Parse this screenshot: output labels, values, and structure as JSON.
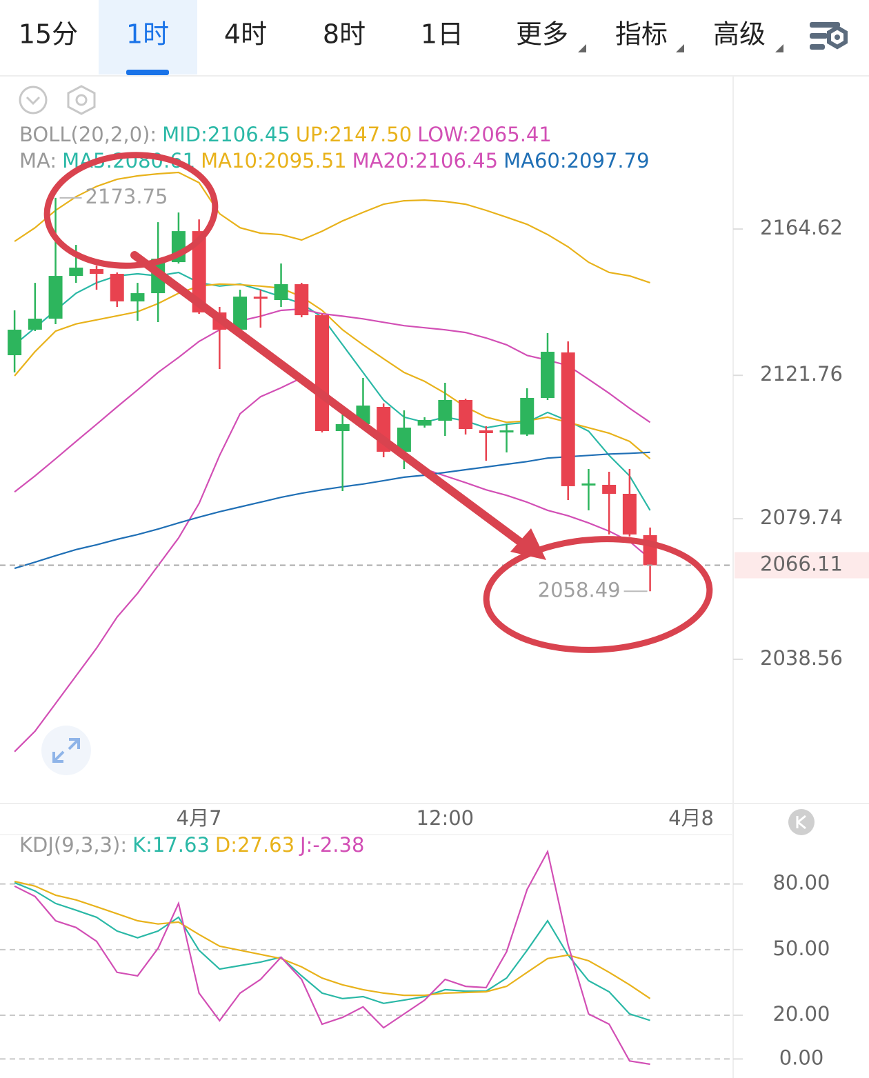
{
  "tabs": [
    "15分",
    "1时",
    "4时",
    "8时",
    "1日",
    "更多",
    "指标",
    "高级"
  ],
  "active_tab": 1,
  "chart_data": [
    {
      "type": "candlestick",
      "indicators": [
        {
          "title": "BOLL(20,2,0):",
          "items": [
            {
              "text": "MID:2106.45",
              "color": "#2ab8a6"
            },
            {
              "text": "UP:2147.50",
              "color": "#e8b21b"
            },
            {
              "text": "LOW:2065.41",
              "color": "#d24fb5"
            }
          ]
        },
        {
          "title": "MA:",
          "items": [
            {
              "text": "MA5:2080.61",
              "color": "#2ab8a6"
            },
            {
              "text": "MA10:2095.51",
              "color": "#e8b21b"
            },
            {
              "text": "MA20:2106.45",
              "color": "#d24fb5"
            },
            {
              "text": "MA60:2097.79",
              "color": "#1f6fb5"
            }
          ]
        }
      ],
      "x": [
        0,
        1,
        2,
        3,
        4,
        5,
        6,
        7,
        8,
        9,
        10,
        11,
        12,
        13,
        14,
        15,
        16,
        17,
        18,
        19,
        20,
        21,
        22,
        23,
        24,
        25,
        26,
        27,
        28,
        29,
        30,
        31
      ],
      "open": [
        2127.65,
        2135.13,
        2138.36,
        2150.88,
        2152.9,
        2151.49,
        2143.41,
        2145.83,
        2154.92,
        2164.01,
        2140.18,
        2135.13,
        2144.82,
        2143.81,
        2148.46,
        2139.37,
        2105.43,
        2107.45,
        2112.5,
        2099.37,
        2107.04,
        2108.46,
        2114.52,
        2105.63,
        2105.02,
        2104.42,
        2115.13,
        2128.46,
        2089.47,
        2089.67,
        2087.04,
        2074.92
      ],
      "high": [
        2140.78,
        2148.86,
        2173.75,
        2159.97,
        2153.91,
        2151.89,
        2148.86,
        2166.64,
        2169.47,
        2167.45,
        2141.79,
        2146.84,
        2146.84,
        2154.52,
        2148.86,
        2139.77,
        2110.48,
        2120.98,
        2113.51,
        2111.49,
        2109.47,
        2119.57,
        2114.92,
        2106.84,
        2107.45,
        2117.95,
        2134.11,
        2131.69,
        2094.32,
        2093.51,
        2094.32,
        2077.15
      ],
      "low": [
        2122.6,
        2134.72,
        2136.74,
        2148.86,
        2146.84,
        2141.79,
        2137.75,
        2137.35,
        2154.52,
        2139.77,
        2123.61,
        2134.72,
        2135.73,
        2141.79,
        2138.76,
        2105.02,
        2087.85,
        2107.04,
        2097.75,
        2094.32,
        2106.44,
        2104.01,
        2104.42,
        2096.74,
        2099.17,
        2104.01,
        2114.52,
        2085.23,
        2082.2,
        2075.13,
        2074.52,
        2058.49
      ],
      "close": [
        2135.13,
        2138.36,
        2150.88,
        2153.31,
        2151.49,
        2143.41,
        2145.83,
        2155.93,
        2164.01,
        2140.18,
        2135.13,
        2144.82,
        2144.22,
        2148.46,
        2139.37,
        2105.43,
        2107.45,
        2112.9,
        2099.37,
        2106.44,
        2108.66,
        2114.52,
        2106.03,
        2104.82,
        2105.63,
        2115.13,
        2128.66,
        2089.27,
        2090.07,
        2087.04,
        2075.13,
        2066.11
      ],
      "up_color": "#2db55d",
      "down_color": "#e8424f",
      "series": [
        {
          "color": "#e8b21b",
          "values": [
            2161.0,
            2165.0,
            2170.1,
            2174.1,
            2177.1,
            2179.2,
            2180.2,
            2180.8,
            2181.2,
            2178.2,
            2169.1,
            2165.0,
            2163.4,
            2163.0,
            2161.4,
            2164.0,
            2167.0,
            2169.5,
            2171.9,
            2172.9,
            2173.1,
            2172.7,
            2171.9,
            2170.1,
            2168.1,
            2166.0,
            2163.0,
            2159.4,
            2154.9,
            2151.9,
            2150.9,
            2148.9
          ]
        },
        {
          "color": "#d24fb5",
          "values": [
            2011.5,
            2017.5,
            2025.6,
            2033.7,
            2041.8,
            2050.9,
            2057.9,
            2066.0,
            2074.1,
            2084.2,
            2098.3,
            2110.5,
            2115.5,
            2118.1,
            2121.0,
            2117.5,
            2112.5,
            2107.4,
            2102.4,
            2098.3,
            2094.3,
            2092.3,
            2090.3,
            2088.2,
            2086.6,
            2084.6,
            2082.2,
            2080.6,
            2078.5,
            2076.1,
            2073.1,
            2068.0
          ]
        },
        {
          "color": "#2ab8a6",
          "values": [
            2130.7,
            2135.7,
            2140.8,
            2145.8,
            2148.9,
            2150.9,
            2151.5,
            2150.9,
            2151.9,
            2148.9,
            2147.9,
            2148.5,
            2146.8,
            2144.8,
            2142.8,
            2138.8,
            2130.7,
            2122.6,
            2114.5,
            2109.5,
            2108.0,
            2109.5,
            2108.4,
            2106.4,
            2107.4,
            2108.0,
            2110.9,
            2108.4,
            2105.4,
            2098.3,
            2092.3,
            2082.2
          ]
        },
        {
          "color": "#e8b21b",
          "values": [
            2121.6,
            2128.7,
            2134.7,
            2136.8,
            2138.0,
            2139.2,
            2140.4,
            2142.8,
            2145.8,
            2147.9,
            2148.5,
            2148.3,
            2147.9,
            2147.3,
            2144.8,
            2140.8,
            2135.1,
            2130.7,
            2126.6,
            2122.6,
            2120.0,
            2116.5,
            2112.5,
            2109.5,
            2108.0,
            2108.4,
            2109.5,
            2108.0,
            2106.4,
            2104.8,
            2102.4,
            2097.3
          ]
        },
        {
          "color": "#d24fb5",
          "values": [
            2087.6,
            2092.3,
            2097.3,
            2102.4,
            2107.4,
            2112.5,
            2117.5,
            2122.6,
            2127.0,
            2131.7,
            2135.1,
            2137.7,
            2139.1,
            2140.8,
            2141.2,
            2139.8,
            2139.1,
            2138.3,
            2137.3,
            2136.3,
            2135.7,
            2135.1,
            2134.3,
            2132.7,
            2130.7,
            2127.6,
            2126.2,
            2124.6,
            2120.6,
            2116.5,
            2112.1,
            2108.0
          ]
        },
        {
          "color": "#1f6fb5",
          "values": [
            2065.2,
            2067.0,
            2068.9,
            2070.7,
            2072.1,
            2073.7,
            2075.1,
            2076.7,
            2078.5,
            2080.2,
            2081.8,
            2083.2,
            2084.6,
            2086.0,
            2087.2,
            2088.2,
            2089.1,
            2089.9,
            2090.9,
            2091.9,
            2092.5,
            2093.3,
            2094.1,
            2094.9,
            2095.7,
            2096.5,
            2097.5,
            2097.9,
            2098.3,
            2098.7,
            2098.9,
            2099.2
          ]
        }
      ],
      "xlim": [
        -0.71,
        35.05
      ],
      "xticks": [
        {
          "value": 9,
          "label": "4月7"
        },
        {
          "value": 21,
          "label": "12:00"
        },
        {
          "value": 33,
          "label": "4月8"
        }
      ],
      "ylim": [
        1996.3,
        2209.5
      ],
      "yticks": [
        2164.62,
        2121.76,
        2079.74,
        2038.56
      ],
      "grid": false,
      "max_label": 2173.75,
      "min_label": 2058.49,
      "last_price": 2066.11
    },
    {
      "type": "line",
      "indicators": [
        {
          "title": "KDJ(9,3,3):",
          "items": [
            {
              "text": "K:17.63",
              "color": "#2ab8a6"
            },
            {
              "text": "D:27.63",
              "color": "#e8b21b"
            },
            {
              "text": "J:-2.38",
              "color": "#d24fb5"
            }
          ]
        }
      ],
      "x": [
        0,
        1,
        2,
        3,
        4,
        5,
        6,
        7,
        8,
        9,
        10,
        11,
        12,
        13,
        14,
        15,
        16,
        17,
        18,
        19,
        20,
        21,
        22,
        23,
        24,
        25,
        26,
        27,
        28,
        29,
        30,
        31
      ],
      "series": [
        {
          "color": "#2ab8a6",
          "values": [
            80.6,
            76.8,
            71.1,
            68.0,
            64.8,
            58.5,
            55.4,
            58.5,
            64.8,
            49.7,
            41.1,
            42.7,
            44.3,
            46.5,
            38.0,
            30.1,
            27.6,
            28.5,
            25.4,
            26.9,
            28.5,
            31.7,
            31.0,
            31.0,
            37.0,
            49.7,
            63.2,
            47.5,
            35.8,
            30.7,
            20.6,
            17.63
          ]
        },
        {
          "color": "#e8b21b",
          "values": [
            81.2,
            79.0,
            74.9,
            72.7,
            69.6,
            66.4,
            63.2,
            61.7,
            62.6,
            56.9,
            51.6,
            49.7,
            47.8,
            45.9,
            42.1,
            37.0,
            33.9,
            31.7,
            30.1,
            29.1,
            29.1,
            30.1,
            30.4,
            30.7,
            33.2,
            39.6,
            45.9,
            47.5,
            44.9,
            39.6,
            33.9,
            27.63
          ]
        },
        {
          "color": "#d24fb5",
          "values": [
            79.0,
            74.3,
            63.2,
            60.1,
            53.8,
            39.6,
            38.0,
            50.6,
            71.1,
            30.1,
            17.5,
            30.1,
            36.4,
            46.5,
            36.4,
            15.9,
            19.0,
            23.8,
            14.3,
            20.6,
            26.9,
            36.4,
            33.2,
            32.6,
            49.0,
            77.5,
            94.8,
            52.2,
            20.6,
            15.9,
            -0.9,
            -2.38
          ]
        }
      ],
      "xlim": [
        -0.71,
        35.05
      ],
      "ylim": [
        -8.7,
        102.6
      ],
      "yticks": [
        {
          "value": 80,
          "label": "80.00"
        },
        {
          "value": 50,
          "label": "50.00"
        },
        {
          "value": 20,
          "label": "20.00"
        },
        {
          "value": 0,
          "label": "0.00"
        }
      ],
      "grid": true
    }
  ]
}
